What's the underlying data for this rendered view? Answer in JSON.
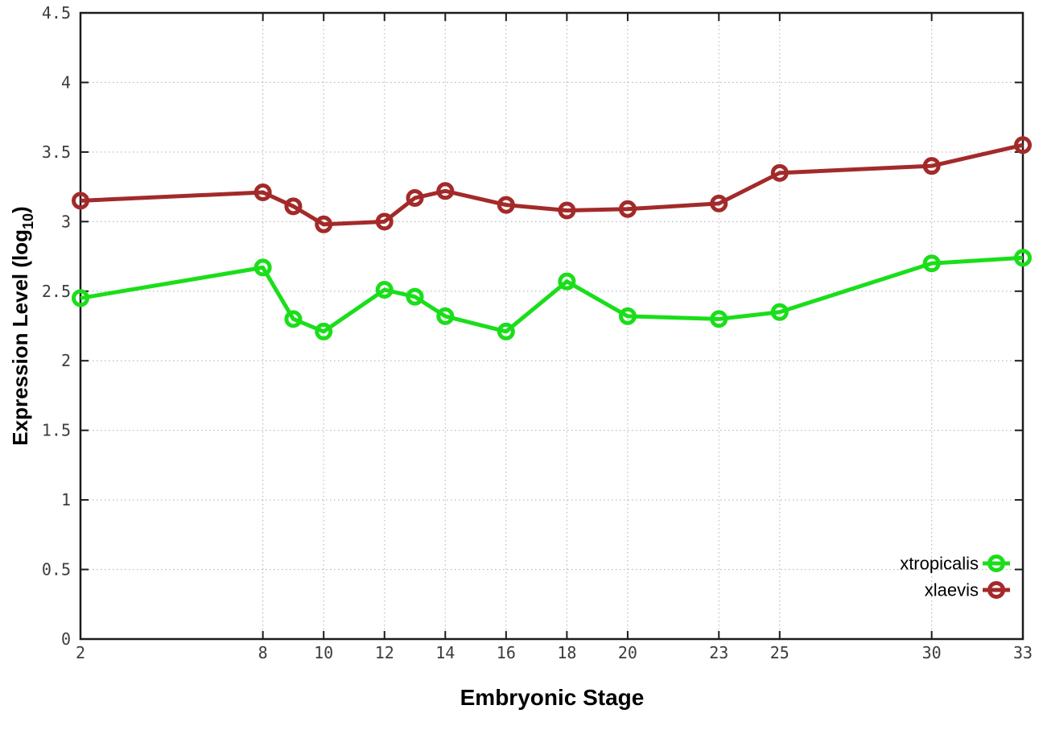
{
  "chart_data": {
    "type": "line",
    "title": "",
    "xlabel": "Embryonic Stage",
    "ylabel": "Expression Level (log10)",
    "ylabel_parts": {
      "prefix": "Expression Level (log",
      "sub": "10",
      "suffix": ")"
    },
    "xlim": [
      2,
      33
    ],
    "ylim": [
      0,
      4.5
    ],
    "grid": true,
    "marker": "open-circle",
    "x_ticks": [
      {
        "v": 2,
        "label": "2"
      },
      {
        "v": 8,
        "label": "8"
      },
      {
        "v": 10,
        "label": "10"
      },
      {
        "v": 12,
        "label": "12"
      },
      {
        "v": 14,
        "label": "14"
      },
      {
        "v": 16,
        "label": "16"
      },
      {
        "v": 18,
        "label": "18"
      },
      {
        "v": 20,
        "label": "20"
      },
      {
        "v": 23,
        "label": "23"
      },
      {
        "v": 25,
        "label": "25"
      },
      {
        "v": 30,
        "label": "30"
      },
      {
        "v": 33,
        "label": "33"
      }
    ],
    "y_ticks": [
      {
        "v": 0,
        "label": "0"
      },
      {
        "v": 0.5,
        "label": "0.5"
      },
      {
        "v": 1,
        "label": "1"
      },
      {
        "v": 1.5,
        "label": "1.5"
      },
      {
        "v": 2,
        "label": "2"
      },
      {
        "v": 2.5,
        "label": "2.5"
      },
      {
        "v": 3,
        "label": "3"
      },
      {
        "v": 3.5,
        "label": "3.5"
      },
      {
        "v": 4,
        "label": "4"
      },
      {
        "v": 4.5,
        "label": "4.5"
      }
    ],
    "x": [
      2,
      8,
      9,
      10,
      12,
      13,
      14,
      16,
      18,
      20,
      23,
      25,
      30,
      33
    ],
    "series": [
      {
        "name": "xtropicalis",
        "color": "#1ade1a",
        "values": [
          2.45,
          2.67,
          2.3,
          2.21,
          2.51,
          2.46,
          2.32,
          2.21,
          2.57,
          2.32,
          2.3,
          2.35,
          2.7,
          2.74
        ]
      },
      {
        "name": "xlaevis",
        "color": "#a32a2a",
        "values": [
          3.15,
          3.21,
          3.11,
          2.98,
          3.0,
          3.17,
          3.22,
          3.12,
          3.08,
          3.09,
          3.13,
          3.35,
          3.4,
          3.55
        ]
      }
    ],
    "legend": {
      "position": "inside-bottom-right",
      "entries": [
        "xtropicalis",
        "xlaevis"
      ]
    },
    "colors": {
      "background": "#ffffff",
      "border": "#1c1c1c",
      "gridline": "#b5b5b5",
      "tick_text": "#3d3d3d"
    }
  }
}
